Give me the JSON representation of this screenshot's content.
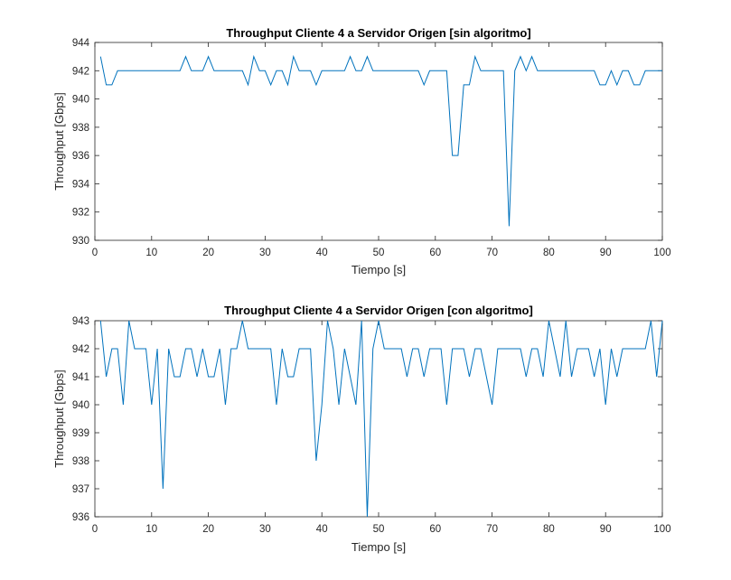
{
  "colors": {
    "line": "#0072BD",
    "axis": "#262626",
    "background": "#ffffff"
  },
  "chart_data": [
    {
      "type": "line",
      "title": "Throughput Cliente 4 a Servidor Origen [sin algoritmo]",
      "xlabel": "Tiempo [s]",
      "ylabel": "Throughput [Gbps]",
      "xlim": [
        0,
        100
      ],
      "ylim": [
        930,
        944
      ],
      "xticks": [
        0,
        10,
        20,
        30,
        40,
        50,
        60,
        70,
        80,
        90,
        100
      ],
      "yticks": [
        930,
        932,
        934,
        936,
        938,
        940,
        942,
        944
      ],
      "grid": false,
      "series": [
        {
          "x": [
            1,
            2,
            3,
            4,
            5,
            6,
            7,
            8,
            9,
            10,
            11,
            12,
            13,
            14,
            15,
            16,
            17,
            18,
            19,
            20,
            21,
            22,
            23,
            24,
            25,
            26,
            27,
            28,
            29,
            30,
            31,
            32,
            33,
            34,
            35,
            36,
            37,
            38,
            39,
            40,
            41,
            42,
            43,
            44,
            45,
            46,
            47,
            48,
            49,
            50,
            51,
            52,
            53,
            54,
            55,
            56,
            57,
            58,
            59,
            60,
            61,
            62,
            63,
            64,
            65,
            66,
            67,
            68,
            69,
            70,
            71,
            72,
            73,
            74,
            75,
            76,
            77,
            78,
            79,
            80,
            81,
            82,
            83,
            84,
            85,
            86,
            87,
            88,
            89,
            90,
            91,
            92,
            93,
            94,
            95,
            96,
            97,
            98,
            99,
            100
          ],
          "values": [
            943,
            941,
            941,
            942,
            942,
            942,
            942,
            942,
            942,
            942,
            942,
            942,
            942,
            942,
            942,
            943,
            942,
            942,
            942,
            943,
            942,
            942,
            942,
            942,
            942,
            942,
            941,
            943,
            942,
            942,
            941,
            942,
            942,
            941,
            943,
            942,
            942,
            942,
            941,
            942,
            942,
            942,
            942,
            942,
            943,
            942,
            942,
            943,
            942,
            942,
            942,
            942,
            942,
            942,
            942,
            942,
            942,
            941,
            942,
            942,
            942,
            942,
            936,
            936,
            941,
            941,
            943,
            942,
            942,
            942,
            942,
            942,
            931,
            942,
            943,
            942,
            943,
            942,
            942,
            942,
            942,
            942,
            942,
            942,
            942,
            942,
            942,
            942,
            941,
            941,
            942,
            941,
            942,
            942,
            941,
            941,
            942,
            942,
            942,
            942
          ]
        }
      ]
    },
    {
      "type": "line",
      "title": "Throughput Cliente 4 a Servidor Origen [con algoritmo]",
      "xlabel": "Tiempo [s]",
      "ylabel": "Throughput [Gbps]",
      "xlim": [
        0,
        100
      ],
      "ylim": [
        936,
        943
      ],
      "xticks": [
        0,
        10,
        20,
        30,
        40,
        50,
        60,
        70,
        80,
        90,
        100
      ],
      "yticks": [
        936,
        937,
        938,
        939,
        940,
        941,
        942,
        943
      ],
      "grid": false,
      "series": [
        {
          "x": [
            1,
            2,
            3,
            4,
            5,
            6,
            7,
            8,
            9,
            10,
            11,
            12,
            13,
            14,
            15,
            16,
            17,
            18,
            19,
            20,
            21,
            22,
            23,
            24,
            25,
            26,
            27,
            28,
            29,
            30,
            31,
            32,
            33,
            34,
            35,
            36,
            37,
            38,
            39,
            40,
            41,
            42,
            43,
            44,
            45,
            46,
            47,
            48,
            49,
            50,
            51,
            52,
            53,
            54,
            55,
            56,
            57,
            58,
            59,
            60,
            61,
            62,
            63,
            64,
            65,
            66,
            67,
            68,
            69,
            70,
            71,
            72,
            73,
            74,
            75,
            76,
            77,
            78,
            79,
            80,
            81,
            82,
            83,
            84,
            85,
            86,
            87,
            88,
            89,
            90,
            91,
            92,
            93,
            94,
            95,
            96,
            97,
            98,
            99,
            100
          ],
          "values": [
            943,
            941,
            942,
            942,
            940,
            943,
            942,
            942,
            942,
            940,
            942,
            937,
            942,
            941,
            941,
            942,
            942,
            941,
            942,
            941,
            941,
            942,
            940,
            942,
            942,
            943,
            942,
            942,
            942,
            942,
            942,
            940,
            942,
            941,
            941,
            942,
            942,
            942,
            938,
            940,
            943,
            942,
            940,
            942,
            941,
            940,
            943,
            936,
            942,
            943,
            942,
            942,
            942,
            942,
            941,
            942,
            942,
            941,
            942,
            942,
            942,
            940,
            942,
            942,
            942,
            941,
            942,
            942,
            941,
            940,
            942,
            942,
            942,
            942,
            942,
            941,
            942,
            942,
            941,
            943,
            942,
            941,
            943,
            941,
            942,
            942,
            942,
            941,
            942,
            940,
            942,
            941,
            942,
            942,
            942,
            942,
            942,
            943,
            941,
            943
          ]
        }
      ]
    }
  ]
}
